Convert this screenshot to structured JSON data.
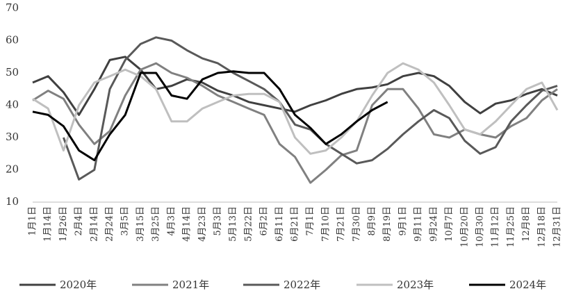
{
  "chart_data": {
    "type": "line",
    "categories": [
      "1月1日",
      "1月14日",
      "1月26日",
      "2月4日",
      "2月14日",
      "2月24日",
      "3月5日",
      "3月15日",
      "3月25日",
      "4月3日",
      "4月14日",
      "4月23日",
      "5月3日",
      "5月13日",
      "5月22日",
      "6月2日",
      "6月11日",
      "6月21日",
      "7月1日",
      "7月10日",
      "7月21日",
      "7月30日",
      "8月9日",
      "8月19日",
      "9月1日",
      "9月11日",
      "9月24日",
      "10月7日",
      "10月20日",
      "10月30日",
      "11月12日",
      "11月25日",
      "12月8日",
      "12月18日",
      "12月31日"
    ],
    "series": [
      {
        "name": "2020年",
        "color": "#404040",
        "values": [
          47,
          49,
          44,
          37,
          45,
          54,
          55,
          51,
          45,
          46,
          48,
          47,
          44.5,
          43,
          41,
          40,
          39,
          38,
          40,
          41.5,
          43.5,
          45,
          45.5,
          46.5,
          49,
          50,
          49,
          46,
          41,
          37.5,
          40.5,
          41.5,
          43.5,
          45,
          43
        ]
      },
      {
        "name": "2021年",
        "color": "#808080",
        "values": [
          41.5,
          44.5,
          42,
          34,
          28,
          32,
          43,
          51,
          53,
          50,
          48.5,
          46,
          43,
          41,
          39,
          37,
          28,
          24,
          16,
          20,
          24.5,
          26,
          40,
          45,
          45,
          39,
          31,
          30,
          32.5,
          31,
          30,
          33.5,
          36,
          41.5,
          45
        ]
      },
      {
        "name": "2022年",
        "color": "#595959",
        "values": [
          null,
          null,
          30,
          17,
          20,
          45,
          54,
          59,
          61,
          60,
          57,
          54.5,
          53,
          50,
          47.5,
          45,
          41,
          34,
          32.5,
          28,
          25,
          22,
          23,
          26.5,
          31,
          35,
          38.5,
          36,
          29,
          25,
          27,
          35,
          40,
          44.5,
          46
        ]
      },
      {
        "name": "2023年",
        "color": "#bfbfbf",
        "values": [
          42,
          39,
          26,
          40,
          47,
          49,
          51,
          49,
          45,
          35,
          35,
          39,
          41,
          43,
          43.5,
          43.5,
          41,
          30,
          25,
          26,
          30,
          35,
          43,
          50,
          53,
          51,
          47,
          40,
          32.5,
          31,
          35,
          40,
          45,
          47,
          38.5
        ]
      },
      {
        "name": "2024年",
        "color": "#000000",
        "values": [
          38,
          37,
          33.5,
          26,
          23,
          31,
          37,
          50,
          50,
          43,
          42,
          48,
          50,
          50.5,
          50,
          50,
          45,
          37,
          33,
          28,
          31,
          35,
          38.5,
          41,
          null,
          null,
          null,
          null,
          null,
          null,
          null,
          null,
          null,
          null,
          null
        ]
      }
    ],
    "ylim": [
      10,
      70
    ],
    "yticks": [
      10,
      20,
      30,
      40,
      50,
      60,
      70
    ],
    "grid": false,
    "legend": "bottom"
  }
}
